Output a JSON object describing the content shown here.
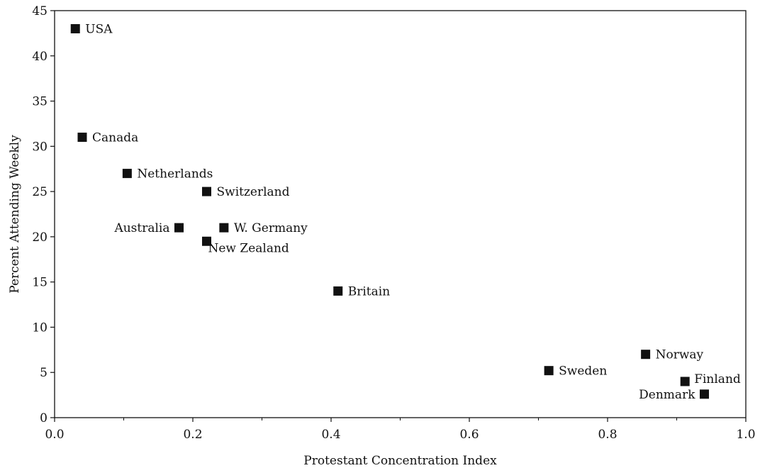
{
  "chart_data": {
    "type": "scatter",
    "title": "",
    "xlabel": "Protestant Concentration Index",
    "ylabel": "Percent Attending Weekly",
    "xlim": [
      0.0,
      1.0
    ],
    "ylim": [
      0,
      45
    ],
    "x_ticks": [
      0.0,
      0.2,
      0.4,
      0.6,
      0.8,
      1.0
    ],
    "x_tick_labels": [
      "0.0",
      "0.2",
      "0.4",
      "0.6",
      "0.8",
      "1.0"
    ],
    "y_ticks": [
      0,
      5,
      10,
      15,
      20,
      25,
      30,
      35,
      40,
      45
    ],
    "y_tick_labels": [
      "0",
      "5",
      "10",
      "15",
      "20",
      "25",
      "30",
      "35",
      "40",
      "45"
    ],
    "grid": false,
    "legend": "none",
    "marker_color": "#111111",
    "points": [
      {
        "label": "USA",
        "x": 0.03,
        "y": 43,
        "label_side": "right"
      },
      {
        "label": "Canada",
        "x": 0.04,
        "y": 31,
        "label_side": "right"
      },
      {
        "label": "Netherlands",
        "x": 0.105,
        "y": 27,
        "label_side": "right"
      },
      {
        "label": "Switzerland",
        "x": 0.22,
        "y": 25,
        "label_side": "right"
      },
      {
        "label": "Australia",
        "x": 0.18,
        "y": 21,
        "label_side": "left"
      },
      {
        "label": "W. Germany",
        "x": 0.245,
        "y": 21,
        "label_side": "right"
      },
      {
        "label": "New Zealand",
        "x": 0.22,
        "y": 19.5,
        "label_side": "right-below"
      },
      {
        "label": "Britain",
        "x": 0.41,
        "y": 14,
        "label_side": "right"
      },
      {
        "label": "Sweden",
        "x": 0.715,
        "y": 5.2,
        "label_side": "right"
      },
      {
        "label": "Norway",
        "x": 0.855,
        "y": 7,
        "label_side": "right"
      },
      {
        "label": "Finland",
        "x": 0.912,
        "y": 4,
        "label_side": "right-above"
      },
      {
        "label": "Denmark",
        "x": 0.94,
        "y": 2.6,
        "label_side": "left"
      }
    ]
  }
}
